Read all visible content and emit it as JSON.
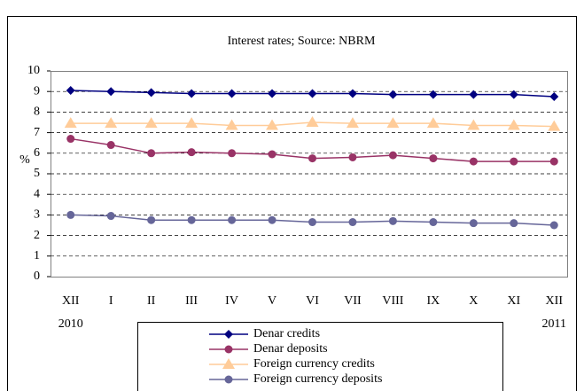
{
  "chart_data": {
    "type": "line",
    "title": "Interest rates; Source: NBRM",
    "ylabel": "%",
    "categories": [
      "XII",
      "I",
      "II",
      "III",
      "IV",
      "V",
      "VI",
      "VII",
      "VIII",
      "IX",
      "X",
      "XI",
      "XII"
    ],
    "category_years": [
      "2010",
      null,
      null,
      null,
      null,
      null,
      null,
      null,
      null,
      null,
      null,
      null,
      "2011"
    ],
    "series": [
      {
        "name": "Denar credits",
        "color": "#000080",
        "marker": "diamond",
        "values": [
          9.05,
          9.0,
          8.95,
          8.9,
          8.9,
          8.9,
          8.9,
          8.9,
          8.85,
          8.85,
          8.85,
          8.85,
          8.75
        ]
      },
      {
        "name": "Denar deposits",
        "color": "#993366",
        "marker": "circle",
        "values": [
          6.7,
          6.4,
          6.0,
          6.05,
          6.0,
          5.95,
          5.75,
          5.8,
          5.9,
          5.75,
          5.6,
          5.6,
          5.6
        ]
      },
      {
        "name": "Foreign currency credits",
        "color": "#FFCC99",
        "marker": "triangle",
        "values": [
          7.45,
          7.45,
          7.45,
          7.45,
          7.35,
          7.35,
          7.5,
          7.45,
          7.45,
          7.45,
          7.35,
          7.35,
          7.3
        ]
      },
      {
        "name": "Foreign currency deposits",
        "color": "#666699",
        "marker": "circle",
        "values": [
          3.0,
          2.95,
          2.75,
          2.75,
          2.75,
          2.75,
          2.65,
          2.65,
          2.7,
          2.65,
          2.6,
          2.6,
          2.5
        ]
      }
    ],
    "ylim": [
      0,
      10
    ],
    "yticks": [
      0,
      1,
      2,
      3,
      4,
      5,
      6,
      7,
      8,
      9,
      10
    ],
    "grid": true,
    "legend": "bottom"
  }
}
